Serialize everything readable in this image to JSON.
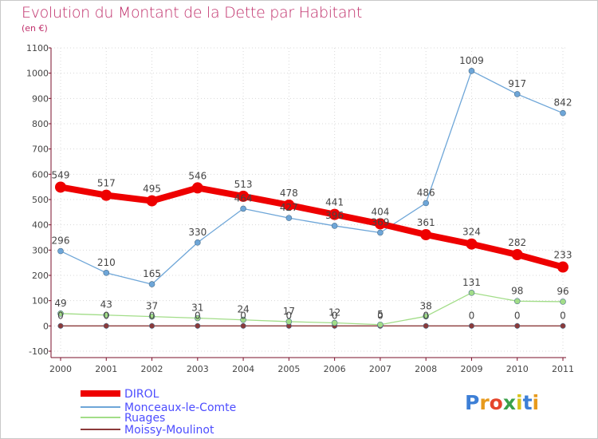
{
  "title": "Evolution du Montant de la Dette par Habitant",
  "subtitle": "(en €)",
  "logo": {
    "letters": [
      "P",
      "r",
      "o",
      "x",
      "i",
      "t",
      "i"
    ],
    "colors": [
      "#3d7fd6",
      "#e79a1c",
      "#e5452c",
      "#3aa04a",
      "#d8c31a",
      "#3d7fd6",
      "#e79a1c"
    ]
  },
  "chart_data": {
    "type": "line",
    "x": [
      "2000",
      "2001",
      "2002",
      "2003",
      "2004",
      "2005",
      "2006",
      "2007",
      "2008",
      "2009",
      "2010",
      "2011"
    ],
    "ylim": [
      -100,
      1100
    ],
    "yticks": [
      "-100",
      "0",
      "100",
      "200",
      "300",
      "400",
      "500",
      "600",
      "700",
      "800",
      "900",
      "1000",
      "1100"
    ],
    "series": [
      {
        "name": "DIROL",
        "color": "#ee0000",
        "values": [
          549,
          517,
          495,
          546,
          513,
          478,
          441,
          404,
          361,
          324,
          282,
          233
        ],
        "labels": [
          "549",
          "517",
          "495",
          "546",
          "513",
          "478",
          "441",
          "404",
          "361",
          "324",
          "282",
          "233"
        ]
      },
      {
        "name": "Monceaux-le-Comte",
        "color": "#6ea6d8",
        "values": [
          296,
          210,
          165,
          330,
          464,
          427,
          396,
          369,
          486,
          1009,
          917,
          842
        ],
        "labels": [
          "296",
          "210",
          "165",
          "330",
          "464",
          "427",
          "396",
          "369",
          "486",
          "1009",
          "917",
          "842"
        ]
      },
      {
        "name": "Ruages",
        "color": "#a2dd88",
        "values": [
          49,
          43,
          37,
          31,
          24,
          17,
          12,
          5,
          38,
          131,
          98,
          96
        ],
        "labels": [
          "49",
          "43",
          "37",
          "31",
          "24",
          "17",
          "12",
          "5",
          "38",
          "131",
          "98",
          "96"
        ]
      },
      {
        "name": "Moissy-Moulinot",
        "color": "#8b3a3a",
        "values": [
          0,
          0,
          0,
          0,
          0,
          0,
          0,
          0,
          0,
          0,
          0,
          0
        ],
        "labels": [
          "0",
          "0",
          "0",
          "0",
          "0",
          "0",
          "0",
          "0",
          "0",
          "0",
          "0",
          "0"
        ]
      }
    ]
  }
}
